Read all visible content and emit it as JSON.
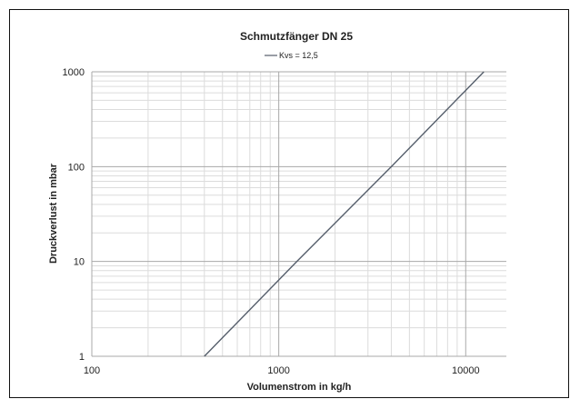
{
  "chart_data": {
    "type": "line",
    "title": "Schmutzfänger DN 25",
    "xlabel": "Volumenstrom in kg/h",
    "ylabel": "Druckverlust in mbar",
    "x_scale": "log",
    "y_scale": "log",
    "xlim": [
      100,
      16500
    ],
    "ylim": [
      1,
      1000
    ],
    "x_ticks": [
      100,
      1000,
      10000
    ],
    "x_tick_labels": [
      "100",
      "1000",
      "10000"
    ],
    "y_ticks": [
      1,
      10,
      100,
      1000
    ],
    "y_tick_labels": [
      "1",
      "10",
      "100",
      "1000"
    ],
    "grid": true,
    "legend_position": "top-center",
    "series": [
      {
        "name": "Kvs = 12,5",
        "color": "#555e6b",
        "x": [
          400,
          1250,
          4000,
          12500
        ],
        "y": [
          1,
          10,
          100,
          1000
        ]
      }
    ]
  }
}
